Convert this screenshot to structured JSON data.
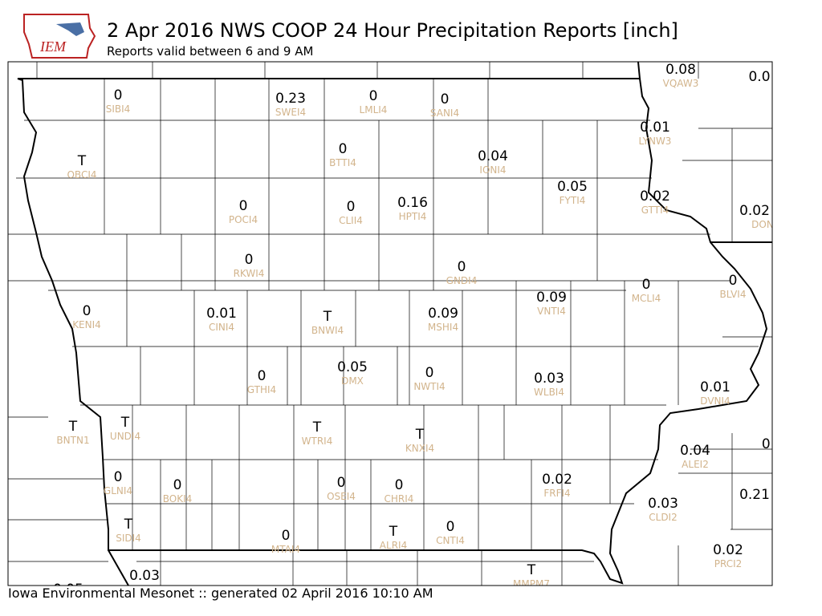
{
  "header": {
    "logo_text": "IEM",
    "title": "2 Apr 2016 NWS COOP 24 Hour Precipitation Reports [inch]",
    "subtitle": "Reports valid between 6 and 9 AM"
  },
  "footer": "Iowa Environmental Mesonet :: generated 02 April 2016 10:10 AM",
  "stations": [
    {
      "amount": "0",
      "id": "SIBI4"
    },
    {
      "amount": "0.23",
      "id": "SWEI4"
    },
    {
      "amount": "0",
      "id": "LMLI4"
    },
    {
      "amount": "0",
      "id": "SANI4"
    },
    {
      "amount": "0.08",
      "id": "VQAW3"
    },
    {
      "amount": "0.0"
    },
    {
      "amount": "T",
      "id": "OBCI4"
    },
    {
      "amount": "0",
      "id": "BTTI4"
    },
    {
      "amount": "0.04",
      "id": "IONI4"
    },
    {
      "amount": "0.01",
      "id": "LYNW3"
    },
    {
      "amount": "0",
      "id": "POCI4"
    },
    {
      "amount": "0",
      "id": "CLII4"
    },
    {
      "amount": "0.16",
      "id": "HPTI4"
    },
    {
      "amount": "0.05",
      "id": "FYTI4"
    },
    {
      "amount": "0.02",
      "id": "GTTI4"
    },
    {
      "amount": "0.02",
      "id": "DON"
    },
    {
      "amount": "0",
      "id": "RKWI4"
    },
    {
      "amount": "0",
      "id": "GNDI4"
    },
    {
      "amount": "0",
      "id": "BLVI4"
    },
    {
      "amount": "0.09",
      "id": "VNTI4"
    },
    {
      "amount": "0",
      "id": "MCLI4"
    },
    {
      "amount": "0",
      "id": "KENI4"
    },
    {
      "amount": "0.01",
      "id": "CINI4"
    },
    {
      "amount": "T",
      "id": "BNWI4"
    },
    {
      "amount": "0.09",
      "id": "MSHI4"
    },
    {
      "amount": "0.05",
      "id": "DMX"
    },
    {
      "amount": "0",
      "id": "GTHI4"
    },
    {
      "amount": "0",
      "id": "NWTI4"
    },
    {
      "amount": "0.03",
      "id": "WLBI4"
    },
    {
      "amount": "0.01",
      "id": "DVNI4"
    },
    {
      "amount": "T",
      "id": "BNTN1"
    },
    {
      "amount": "T",
      "id": "UNDI4"
    },
    {
      "amount": "T",
      "id": "WTRI4"
    },
    {
      "amount": "T",
      "id": "KNXI4"
    },
    {
      "amount": "0.04",
      "id": "ALEI2"
    },
    {
      "amount": "0."
    },
    {
      "amount": "0",
      "id": "GLNI4"
    },
    {
      "amount": "0",
      "id": "BOKI4"
    },
    {
      "amount": "0",
      "id": "OSEI4"
    },
    {
      "amount": "0",
      "id": "CHRI4"
    },
    {
      "amount": "0.02",
      "id": "FRFI4"
    },
    {
      "amount": "0.21"
    },
    {
      "amount": "0.03",
      "id": "CLDI2"
    },
    {
      "amount": "T",
      "id": "SIDI4"
    },
    {
      "amount": "0",
      "id": "MTAI4"
    },
    {
      "amount": "T",
      "id": "ALRI4"
    },
    {
      "amount": "0",
      "id": "CNTI4"
    },
    {
      "amount": "0.02",
      "id": "PRCI2"
    },
    {
      "amount": "T",
      "id": "MMPM7"
    },
    {
      "amount": "0.03"
    },
    {
      "amount": "0.05"
    }
  ]
}
